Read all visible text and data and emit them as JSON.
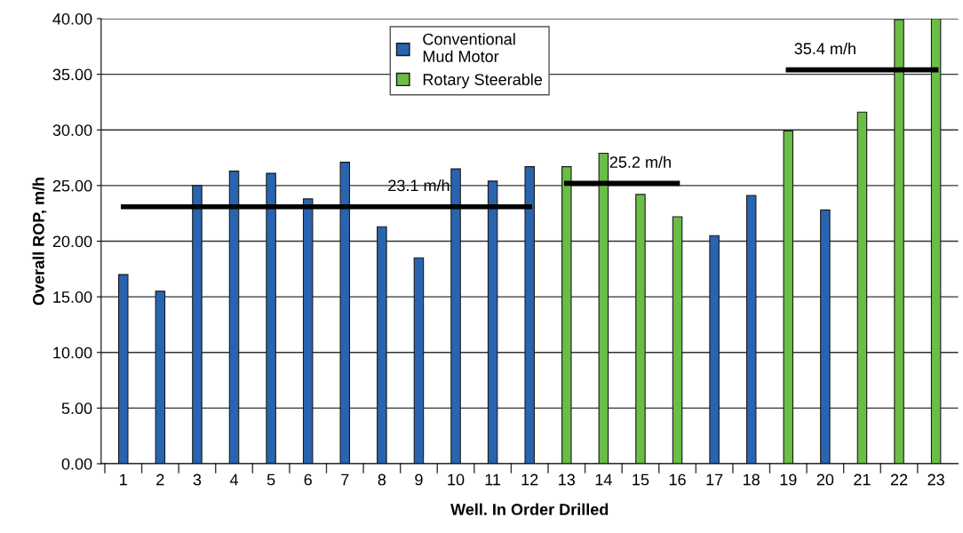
{
  "chart_data": {
    "type": "bar",
    "xlabel": "Well. In Order Drilled",
    "ylabel": "Overall ROP, m/h",
    "categories": [
      "1",
      "2",
      "3",
      "4",
      "5",
      "6",
      "7",
      "8",
      "9",
      "10",
      "11",
      "12",
      "13",
      "14",
      "15",
      "16",
      "17",
      "18",
      "19",
      "20",
      "21",
      "22",
      "23"
    ],
    "series": [
      {
        "name": "Conventional\nMud Motor",
        "color": "#2964b0",
        "values": [
          17.0,
          15.5,
          25.0,
          26.3,
          26.1,
          23.8,
          27.1,
          21.3,
          18.5,
          26.5,
          25.4,
          26.7,
          null,
          null,
          null,
          null,
          20.5,
          24.1,
          null,
          22.8,
          null,
          null,
          null
        ]
      },
      {
        "name": "Rotary Steerable",
        "color": "#6abd45",
        "values": [
          null,
          null,
          null,
          null,
          null,
          null,
          null,
          null,
          null,
          null,
          null,
          null,
          26.7,
          27.9,
          24.2,
          22.2,
          null,
          null,
          29.9,
          null,
          31.6,
          39.9,
          40.0
        ]
      },
      {
        "type": "line",
        "color": "#000000",
        "values": [
          23.1,
          23.1,
          23.1,
          23.1,
          23.1,
          23.1,
          23.1,
          23.1,
          23.1,
          23.1,
          23.1,
          23.1,
          null,
          null,
          null,
          null,
          null,
          null,
          null,
          null,
          null,
          null,
          null
        ]
      },
      {
        "type": "line",
        "color": "#000000",
        "values": [
          null,
          null,
          null,
          null,
          null,
          null,
          null,
          null,
          null,
          null,
          null,
          null,
          25.2,
          25.2,
          25.2,
          25.2,
          null,
          null,
          null,
          null,
          null,
          null,
          null
        ]
      },
      {
        "type": "line",
        "color": "#000000",
        "values": [
          null,
          null,
          null,
          null,
          null,
          null,
          null,
          null,
          null,
          null,
          null,
          null,
          null,
          null,
          null,
          null,
          null,
          null,
          35.4,
          35.4,
          35.4,
          35.4,
          35.4
        ]
      }
    ],
    "annotations": [
      {
        "text": "23.1 m/h",
        "x": "9",
        "y": 23.1
      },
      {
        "text": "25.2 m/h",
        "x": "15",
        "y": 25.2
      },
      {
        "text": "35.4 m/h",
        "x": "20",
        "y": 35.4
      }
    ],
    "ylim": [
      0,
      40
    ],
    "yticks": [
      {
        "value": 0,
        "label": "0.00"
      },
      {
        "value": 5,
        "label": "5.00"
      },
      {
        "value": 10,
        "label": "10.00"
      },
      {
        "value": 15,
        "label": "15.00"
      },
      {
        "value": 20,
        "label": "20.00"
      },
      {
        "value": 25,
        "label": "25.00"
      },
      {
        "value": 30,
        "label": "30.00"
      },
      {
        "value": 35,
        "label": "35.00"
      },
      {
        "value": 40,
        "label": "40.00"
      }
    ],
    "grid": "y",
    "legend": "top"
  }
}
